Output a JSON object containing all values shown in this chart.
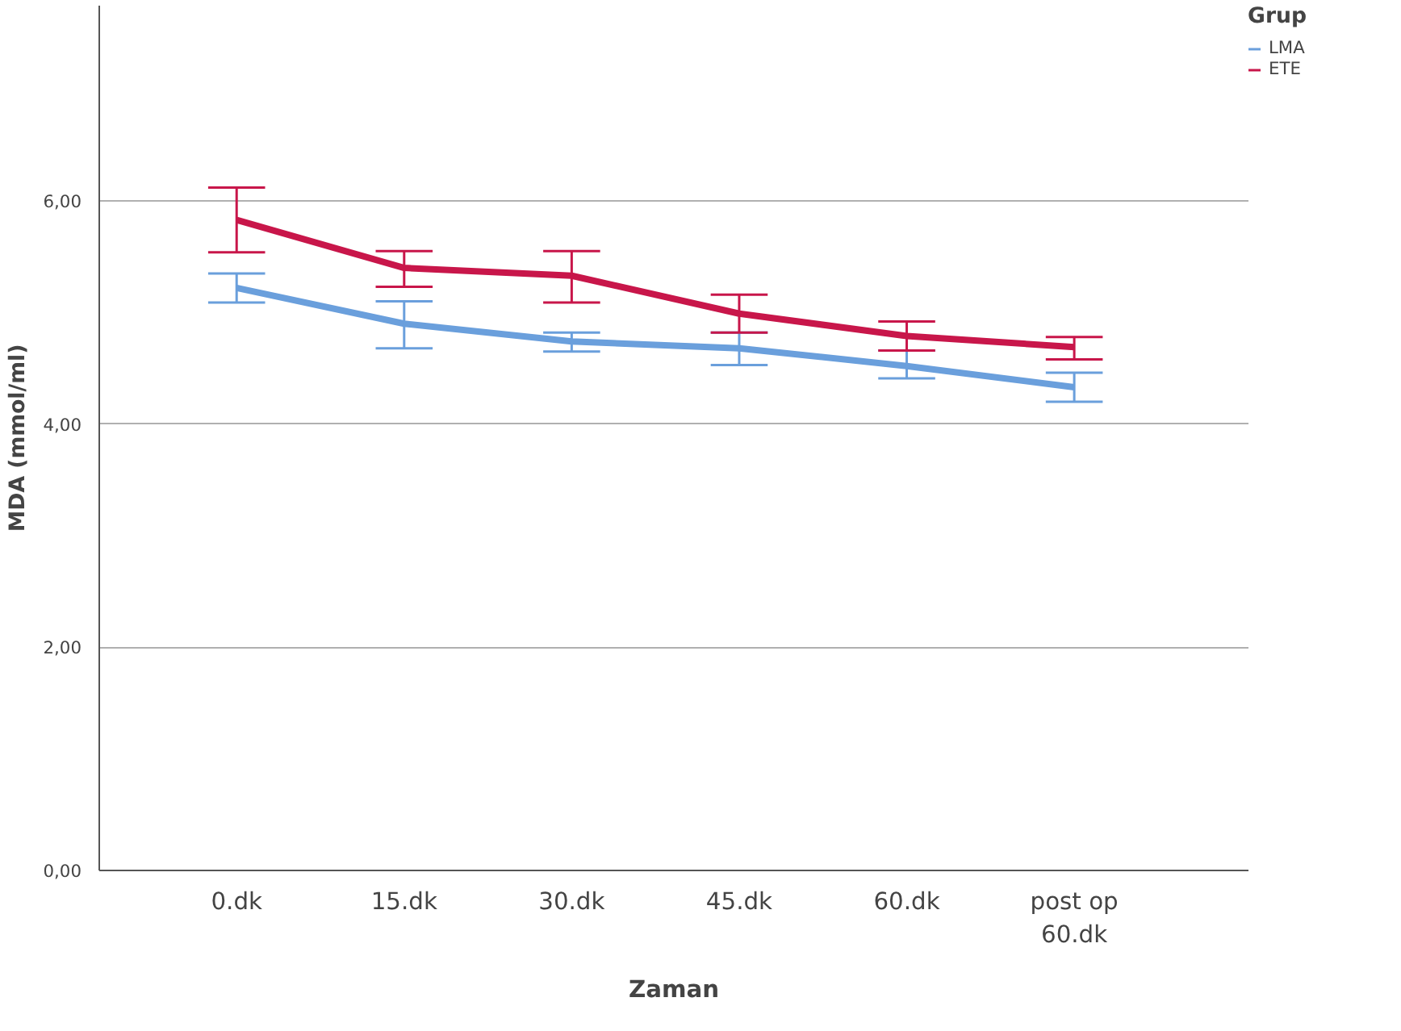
{
  "chart_data": {
    "type": "line",
    "xlabel": "Zaman",
    "ylabel": "MDA (mmol/ml)",
    "legend_title": "Grup",
    "categories": [
      "0.dk",
      "15.dk",
      "30.dk",
      "45.dk",
      "60.dk",
      "post op 60.dk"
    ],
    "series": [
      {
        "name": "LMA",
        "color": "#6a9fdc",
        "values": [
          5.22,
          4.9,
          4.74,
          4.68,
          4.52,
          4.33
        ],
        "errors": [
          [
            5.09,
            5.35
          ],
          [
            4.68,
            5.1
          ],
          [
            4.65,
            4.82
          ],
          [
            4.53,
            4.82
          ],
          [
            4.41,
            4.66
          ],
          [
            4.2,
            4.46
          ]
        ]
      },
      {
        "name": "ETE",
        "color": "#c8164a",
        "values": [
          5.83,
          5.4,
          5.33,
          4.99,
          4.79,
          4.69
        ],
        "errors": [
          [
            5.54,
            6.12
          ],
          [
            5.23,
            5.55
          ],
          [
            5.09,
            5.55
          ],
          [
            4.82,
            5.16
          ],
          [
            4.66,
            4.92
          ],
          [
            4.58,
            4.78
          ]
        ]
      }
    ],
    "ylim": [
      0,
      7.75
    ],
    "yticks": [
      {
        "value": 0,
        "label": "0,00"
      },
      {
        "value": 2,
        "label": "2,00"
      },
      {
        "value": 4,
        "label": "4,00"
      },
      {
        "value": 6,
        "label": "6,00"
      }
    ],
    "grid": "y",
    "legend": "top right",
    "marker": "none",
    "line_style": "solid"
  }
}
